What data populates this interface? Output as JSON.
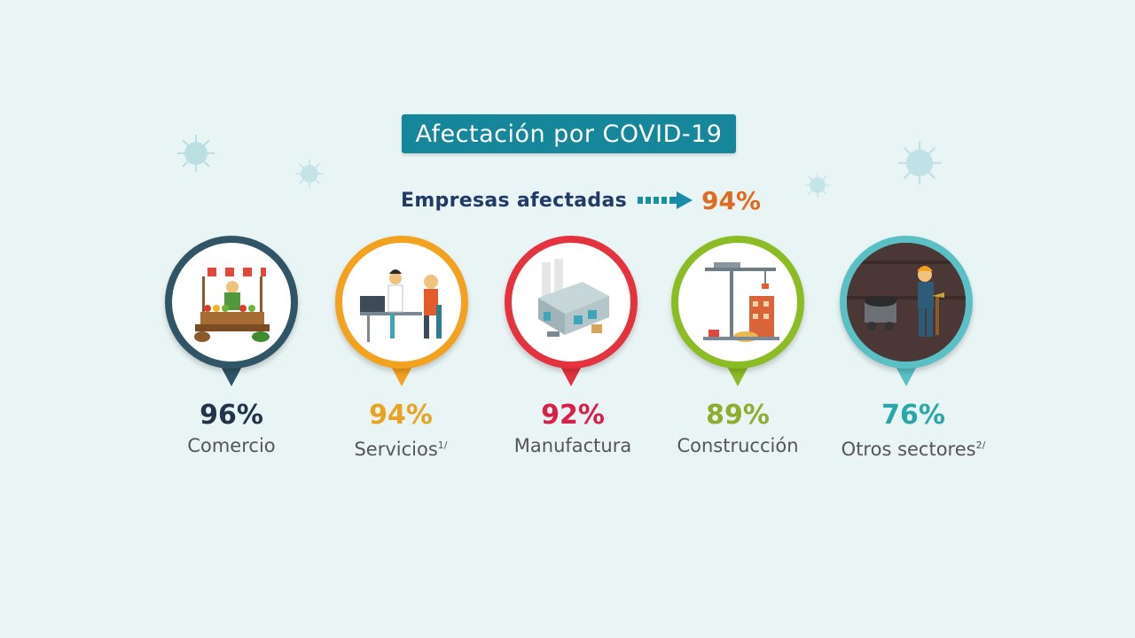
{
  "title": "Afectación por COVID-19",
  "summary": {
    "label": "Empresas afectadas",
    "value": "94%"
  },
  "colors": {
    "title_bg": "#16869b",
    "summary_label": "#213a68",
    "summary_value": "#e06a1e",
    "arrow": "#1b8ca8",
    "virus": "#b9dfe3"
  },
  "sectors": [
    {
      "value": "96%",
      "label": "Comercio",
      "superscript": "",
      "color": "#2f5566",
      "value_color": "#22334a",
      "icon": "market-stall-icon"
    },
    {
      "value": "94%",
      "label": "Servicios",
      "superscript": "1/",
      "color": "#f2a21e",
      "value_color": "#e8a224",
      "icon": "doctor-patient-icon"
    },
    {
      "value": "92%",
      "label": "Manufactura",
      "superscript": "",
      "color": "#e5323f",
      "value_color": "#d91f4a",
      "icon": "factory-icon"
    },
    {
      "value": "89%",
      "label": "Construcción",
      "superscript": "",
      "color": "#8cbc23",
      "value_color": "#8cae2f",
      "icon": "construction-crane-icon"
    },
    {
      "value": "76%",
      "label": "Otros sectores",
      "superscript": "2/",
      "color": "#5bbfc6",
      "value_color": "#2aa6a8",
      "icon": "miner-icon"
    }
  ]
}
